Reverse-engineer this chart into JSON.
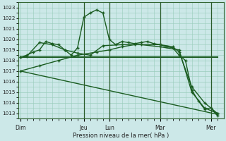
{
  "background_color": "#cce8e8",
  "grid_color": "#99ccbb",
  "line_color": "#1a5c20",
  "xlabel": "Pression niveau de la mer( hPa )",
  "ylim": [
    1012.5,
    1023.5
  ],
  "yticks": [
    1013,
    1014,
    1015,
    1016,
    1017,
    1018,
    1019,
    1020,
    1021,
    1022,
    1023
  ],
  "day_labels": [
    "Dim",
    "Jeu",
    "Lun",
    "Mar",
    "Mer"
  ],
  "day_positions": [
    0,
    10,
    14,
    22,
    30
  ],
  "xlim": [
    -0.3,
    32
  ],
  "series": [
    {
      "x": [
        0,
        1,
        2,
        3,
        4,
        5,
        6,
        7,
        8,
        9,
        10,
        11,
        12,
        13,
        14,
        15,
        16,
        17,
        18,
        19,
        20,
        21,
        22,
        23,
        24,
        25,
        26,
        27,
        28,
        29,
        30,
        31
      ],
      "y": [
        1018.3,
        1018.5,
        1018.8,
        1019.0,
        1019.8,
        1019.6,
        1019.5,
        1019.0,
        1018.5,
        1019.2,
        1022.1,
        1022.5,
        1022.8,
        1022.5,
        1020.0,
        1019.5,
        1019.8,
        1019.7,
        1019.6,
        1019.7,
        1019.8,
        1019.6,
        1019.5,
        1019.3,
        1019.2,
        1018.5,
        1018.0,
        1015.2,
        1014.2,
        1013.4,
        1013.5,
        1012.8
      ],
      "marker": "+",
      "lw": 1.0
    },
    {
      "x": [
        0,
        31
      ],
      "y": [
        1018.3,
        1018.3
      ],
      "marker": null,
      "lw": 1.5
    },
    {
      "x": [
        0,
        31
      ],
      "y": [
        1017.0,
        1012.9
      ],
      "marker": null,
      "lw": 1.0
    },
    {
      "x": [
        0,
        1,
        3,
        5,
        7,
        9,
        11,
        13,
        16,
        19,
        22,
        25,
        27,
        29,
        31
      ],
      "y": [
        1018.3,
        1018.4,
        1019.7,
        1019.5,
        1019.0,
        1018.7,
        1018.5,
        1019.4,
        1019.5,
        1019.5,
        1019.3,
        1019.0,
        1015.0,
        1013.5,
        1013.0
      ],
      "marker": "+",
      "lw": 1.0
    },
    {
      "x": [
        0,
        3,
        6,
        9,
        12,
        14,
        16,
        18,
        22,
        24,
        25,
        27,
        29,
        31
      ],
      "y": [
        1017.0,
        1017.5,
        1018.0,
        1018.5,
        1018.8,
        1019.0,
        1019.3,
        1019.5,
        1019.5,
        1019.3,
        1018.8,
        1015.5,
        1014.0,
        1013.0
      ],
      "marker": "+",
      "lw": 1.0
    }
  ]
}
